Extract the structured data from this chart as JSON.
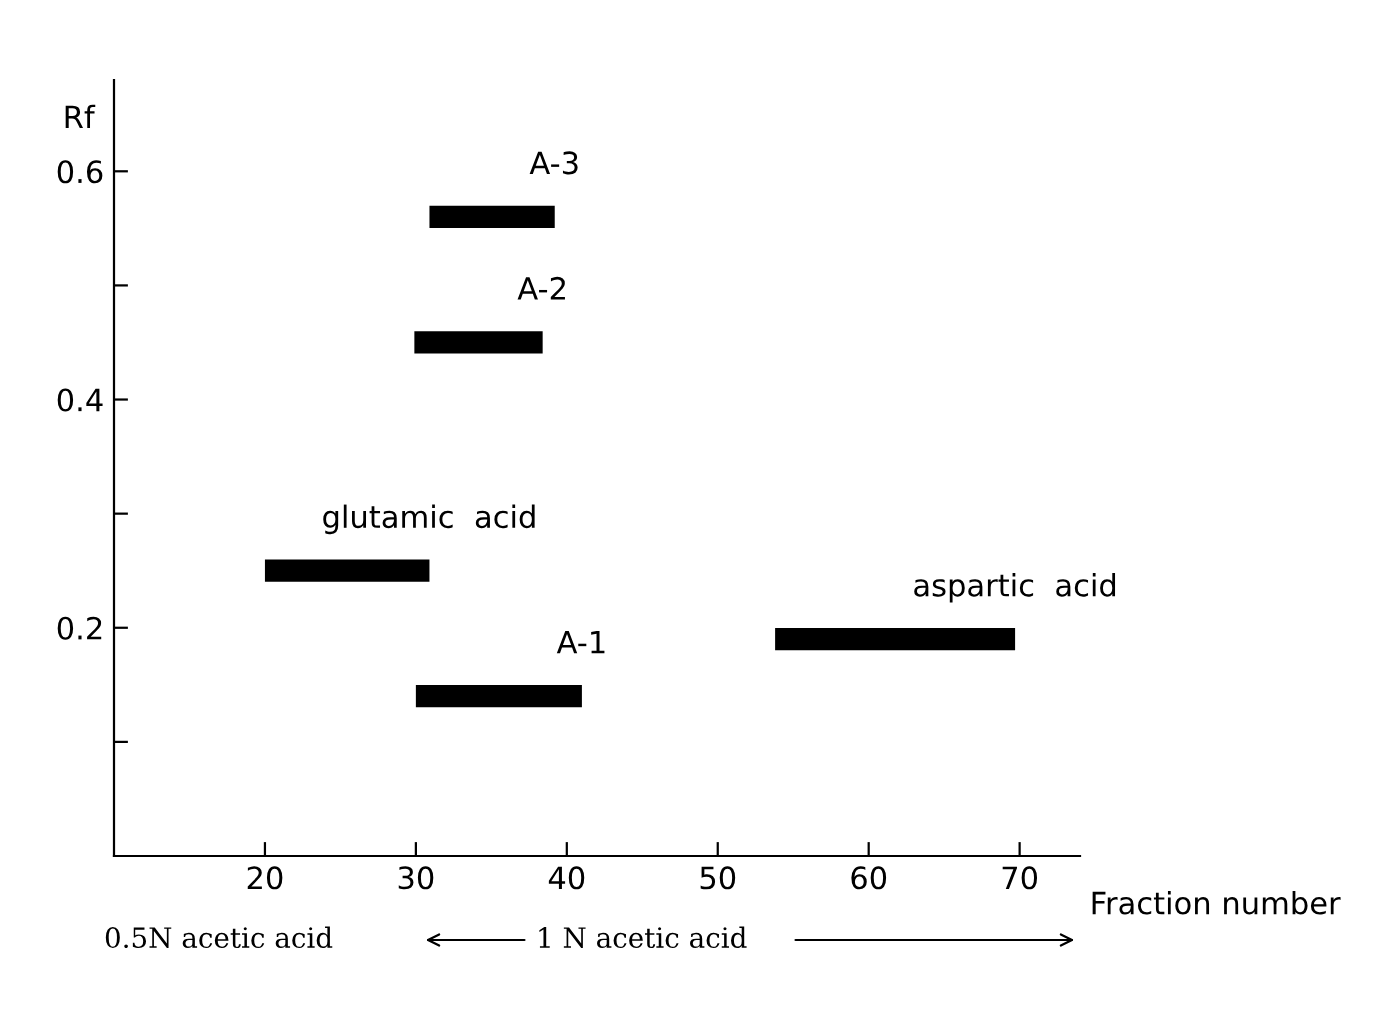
{
  "chart_data": {
    "type": "line",
    "xlabel": "Fraction number",
    "ylabel": "Rf",
    "series": [
      {
        "name": "A-3",
        "color": "#000000",
        "x": [
          30.9,
          39.2
        ],
        "values": [
          0.56,
          0.56
        ]
      },
      {
        "name": "A-2",
        "color": "#000000",
        "x": [
          29.9,
          38.4
        ],
        "values": [
          0.45,
          0.45
        ]
      },
      {
        "name": "glutamic  acid",
        "color": "#000000",
        "x": [
          20.0,
          30.9
        ],
        "values": [
          0.25,
          0.25
        ]
      },
      {
        "name": "A-1",
        "color": "#000000",
        "x": [
          30.0,
          41.0
        ],
        "values": [
          0.14,
          0.14
        ]
      },
      {
        "name": "aspartic  acid",
        "color": "#000000",
        "x": [
          53.8,
          69.7
        ],
        "values": [
          0.19,
          0.19
        ]
      }
    ],
    "xlim": [
      10,
      74
    ],
    "xticks": [
      20,
      30,
      40,
      50,
      60,
      70
    ],
    "ylim": [
      0,
      0.68
    ],
    "yticks": [
      {
        "value": 0.1,
        "label": null
      },
      0.2,
      {
        "value": 0.3,
        "label": null
      },
      0.4,
      {
        "value": 0.5,
        "label": null
      },
      0.6
    ],
    "grid": false,
    "legend": false,
    "marker": "none",
    "line_style": "solid",
    "annotations": [
      "0.5N acetic acid",
      "1 N acetic acid"
    ]
  }
}
